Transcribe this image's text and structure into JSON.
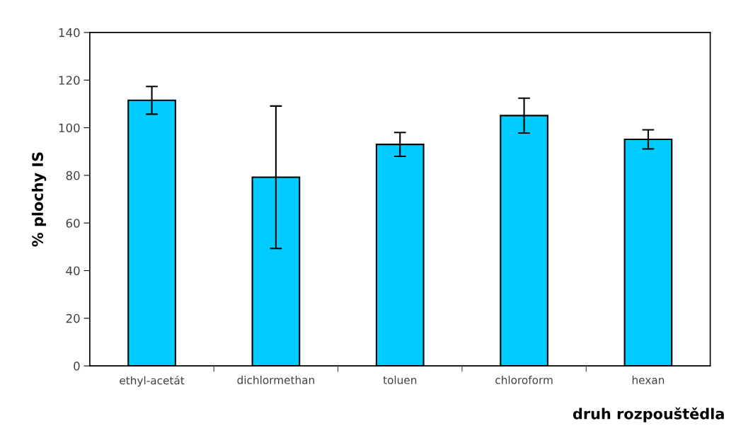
{
  "chart_data": {
    "type": "bar",
    "xlabel": "druh rozpouštědla",
    "ylabel": "% plochy IS",
    "categories": [
      "ethyl-acetát",
      "dichlormethan",
      "toluen",
      "chloroform",
      "hexan"
    ],
    "values": [
      111.5,
      79.2,
      93.0,
      105.1,
      95.1
    ],
    "errors": [
      5.8,
      29.9,
      5.0,
      7.3,
      4.0
    ],
    "color": "#00ccff",
    "ylim": [
      0,
      140
    ],
    "yticks": [
      0,
      20,
      40,
      60,
      80,
      100,
      120,
      140
    ],
    "grid": false,
    "legend": false
  }
}
